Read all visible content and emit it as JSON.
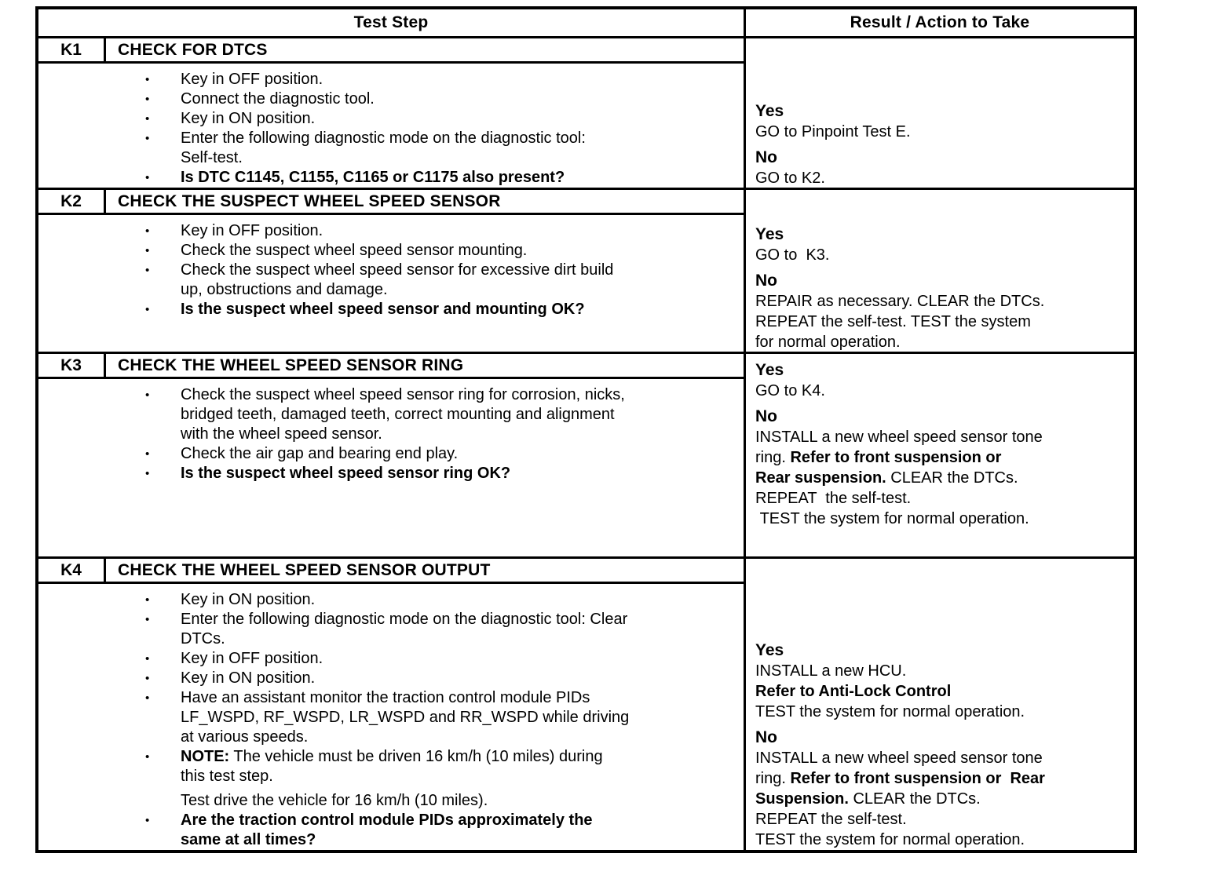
{
  "table": {
    "header": {
      "left": "Test Step",
      "right": "Result / Action to Take"
    },
    "steps": [
      {
        "id": "K1",
        "title": "CHECK FOR DTCS",
        "bullets": [
          {
            "marker": true,
            "segments": [
              {
                "text": "Key in OFF position.",
                "bold": false
              }
            ]
          },
          {
            "marker": true,
            "segments": [
              {
                "text": "Connect the diagnostic tool.",
                "bold": false
              }
            ]
          },
          {
            "marker": true,
            "segments": [
              {
                "text": "Key in ON position.",
                "bold": false
              }
            ]
          },
          {
            "marker": true,
            "segments": [
              {
                "text": "Enter the following diagnostic mode on the diagnostic tool:\nSelf-test.",
                "bold": false
              }
            ]
          },
          {
            "marker": true,
            "segments": [
              {
                "text": "Is DTC C1145, C1155, C1165 or C1175 also present?",
                "bold": true
              }
            ]
          }
        ],
        "results": [
          {
            "label": "Yes",
            "lines": [
              [
                {
                  "text": "GO to Pinpoint Test E.",
                  "bold": false
                }
              ]
            ]
          },
          {
            "label": "No",
            "lines": [
              [
                {
                  "text": "GO to K2.",
                  "bold": false
                }
              ]
            ]
          }
        ]
      },
      {
        "id": "K2",
        "title": "CHECK THE SUSPECT WHEEL SPEED SENSOR",
        "bullets": [
          {
            "marker": true,
            "segments": [
              {
                "text": "Key in OFF position.",
                "bold": false
              }
            ]
          },
          {
            "marker": true,
            "segments": [
              {
                "text": "Check the suspect wheel speed sensor mounting.",
                "bold": false
              }
            ]
          },
          {
            "marker": true,
            "segments": [
              {
                "text": "Check the suspect wheel speed sensor for excessive dirt build\nup, obstructions and damage.",
                "bold": false
              }
            ]
          },
          {
            "marker": true,
            "segments": [
              {
                "text": "Is the suspect wheel speed sensor and mounting OK?",
                "bold": true
              }
            ]
          }
        ],
        "results": [
          {
            "label": "Yes",
            "lines": [
              [
                {
                  "text": "GO to  K3.",
                  "bold": false
                }
              ]
            ]
          },
          {
            "label": "No",
            "lines": [
              [
                {
                  "text": "REPAIR as necessary. CLEAR the DTCs.",
                  "bold": false
                }
              ],
              [
                {
                  "text": "REPEAT the self-test. TEST the system",
                  "bold": false
                }
              ],
              [
                {
                  "text": "for normal operation.",
                  "bold": false
                }
              ]
            ]
          }
        ]
      },
      {
        "id": "K3",
        "title": "CHECK THE WHEEL SPEED SENSOR RING",
        "bullets": [
          {
            "marker": true,
            "segments": [
              {
                "text": "Check the suspect wheel speed sensor ring for corrosion, nicks,\nbridged teeth, damaged teeth, correct mounting and alignment\nwith the wheel speed sensor.",
                "bold": false
              }
            ]
          },
          {
            "marker": true,
            "segments": [
              {
                "text": "Check the air gap and bearing end play.",
                "bold": false
              }
            ]
          },
          {
            "marker": true,
            "segments": [
              {
                "text": "Is the suspect wheel speed sensor ring OK?",
                "bold": true
              }
            ]
          }
        ],
        "results": [
          {
            "label": "Yes",
            "lines": [
              [
                {
                  "text": "GO to K4.",
                  "bold": false
                }
              ]
            ]
          },
          {
            "label": "No",
            "lines": [
              [
                {
                  "text": "INSTALL a new wheel speed sensor tone",
                  "bold": false
                }
              ],
              [
                {
                  "text": "ring. ",
                  "bold": false
                },
                {
                  "text": "Refer to front suspension or",
                  "bold": true
                }
              ],
              [
                {
                  "text": "Rear suspension.",
                  "bold": true
                },
                {
                  "text": " CLEAR the DTCs.",
                  "bold": false
                }
              ],
              [
                {
                  "text": "REPEAT  the self-test.",
                  "bold": false
                }
              ],
              [
                {
                  "text": " TEST the system for normal operation.",
                  "bold": false
                }
              ]
            ]
          }
        ]
      },
      {
        "id": "K4",
        "title": "CHECK THE WHEEL SPEED SENSOR OUTPUT",
        "bullets": [
          {
            "marker": true,
            "segments": [
              {
                "text": "Key in ON position.",
                "bold": false
              }
            ]
          },
          {
            "marker": true,
            "segments": [
              {
                "text": "Enter the following diagnostic mode on the diagnostic tool: Clear\nDTCs.",
                "bold": false
              }
            ]
          },
          {
            "marker": true,
            "segments": [
              {
                "text": "Key in OFF position.",
                "bold": false
              }
            ]
          },
          {
            "marker": true,
            "segments": [
              {
                "text": "Key in ON position.",
                "bold": false
              }
            ]
          },
          {
            "marker": true,
            "segments": [
              {
                "text": "Have an assistant monitor the traction control module PIDs\nLF_WSPD, RF_WSPD, LR_WSPD and RR_WSPD while driving\nat various speeds.",
                "bold": false
              }
            ]
          },
          {
            "marker": true,
            "segments": [
              {
                "text": "NOTE:",
                "bold": true
              },
              {
                "text": " The vehicle must be driven 16 km/h (10 miles) during\nthis test step.",
                "bold": false
              }
            ]
          },
          {
            "marker": false,
            "segments": [
              {
                "text": "Test drive the vehicle for 16 km/h (10 miles).",
                "bold": false
              }
            ]
          },
          {
            "marker": true,
            "segments": [
              {
                "text": "Are the traction control module PIDs approximately the\nsame at all times?",
                "bold": true
              }
            ]
          }
        ],
        "results": [
          {
            "label": "Yes",
            "lines": [
              [
                {
                  "text": "INSTALL a new HCU.",
                  "bold": false
                }
              ],
              [
                {
                  "text": "Refer to Anti-Lock Control",
                  "bold": true
                }
              ],
              [
                {
                  "text": "TEST the system for normal operation.",
                  "bold": false
                }
              ]
            ]
          },
          {
            "label": "No",
            "lines": [
              [
                {
                  "text": "INSTALL a new wheel speed sensor tone",
                  "bold": false
                }
              ],
              [
                {
                  "text": "ring. ",
                  "bold": false
                },
                {
                  "text": "Refer to front suspension or  Rear",
                  "bold": true
                }
              ],
              [
                {
                  "text": "Suspension.",
                  "bold": true
                },
                {
                  "text": " CLEAR the DTCs.",
                  "bold": false
                }
              ],
              [
                {
                  "text": "REPEAT the self-test.",
                  "bold": false
                }
              ],
              [
                {
                  "text": "TEST the system for normal operation.",
                  "bold": false
                }
              ]
            ]
          }
        ]
      }
    ],
    "bullet_glyph": "•"
  }
}
